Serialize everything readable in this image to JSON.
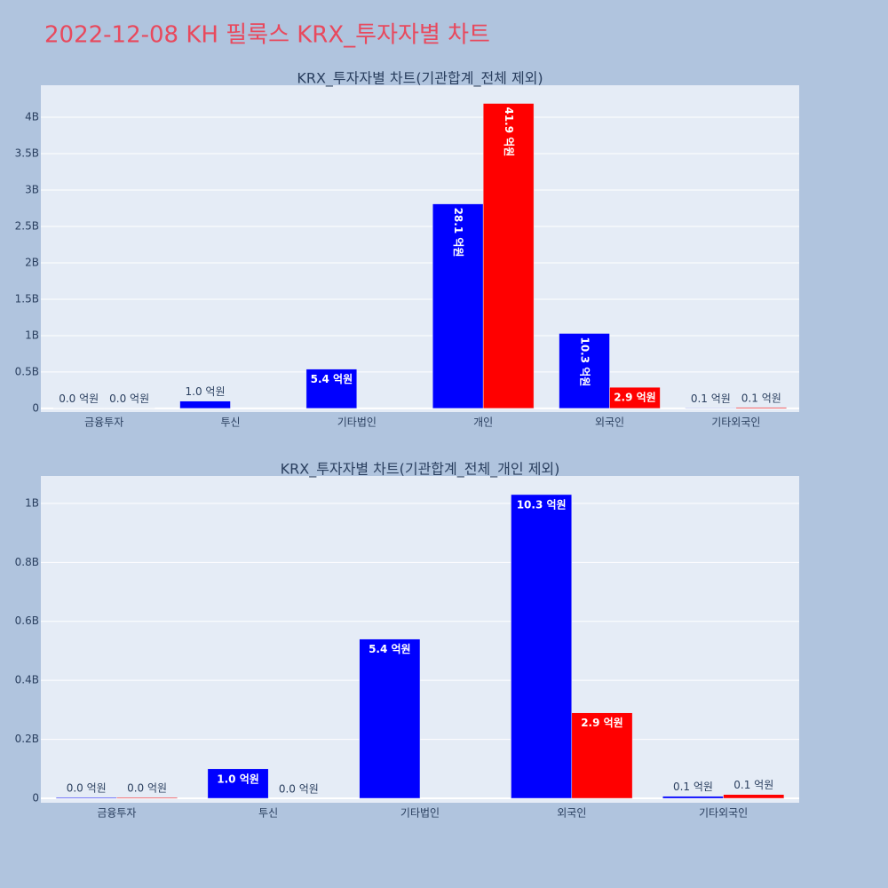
{
  "title": "2022-12-08 KH 필룩스 KRX_투자자별 차트",
  "chart_data": [
    {
      "type": "bar",
      "title": "KRX_투자자별 차트(기관합계_전체 제외)",
      "categories": [
        "금융투자",
        "투신",
        "기타법인",
        "개인",
        "외국인",
        "기타외국인"
      ],
      "series": [
        {
          "color": "#0000ff",
          "values": [
            3000000,
            100000000,
            540000000,
            2810000000,
            1030000000,
            7000000
          ],
          "value_labels": [
            "0.0 억원",
            "1.0 억원",
            "5.4 억원",
            "28.1 억원",
            "10.3 억원",
            "0.1 억원"
          ]
        },
        {
          "color": "#ff0000",
          "values": [
            3000000,
            null,
            null,
            4190000000,
            290000000,
            13000000
          ],
          "value_labels": [
            "0.0 억원",
            null,
            null,
            "41.9 억원",
            "2.9 억원",
            "0.1 억원"
          ]
        }
      ],
      "ylim": [
        -50000000,
        4440000000
      ],
      "yticks": [
        0,
        {
          "value": 500000000,
          "label": "0.5B"
        },
        {
          "value": 1000000000,
          "label": "1B"
        },
        {
          "value": 1500000000,
          "label": "1.5B"
        },
        {
          "value": 2000000000,
          "label": "2B"
        },
        {
          "value": 2500000000,
          "label": "2.5B"
        },
        {
          "value": 3000000000,
          "label": "3B"
        },
        {
          "value": 3500000000,
          "label": "3.5B"
        },
        {
          "value": 4000000000,
          "label": "4B"
        }
      ],
      "grid": true
    },
    {
      "type": "bar",
      "title": "KRX_투자자별 차트(기관합계_전체_개인 제외)",
      "categories": [
        "금융투자",
        "투신",
        "기타법인",
        "외국인",
        "기타외국인"
      ],
      "series": [
        {
          "color": "#0000ff",
          "values": [
            3000000,
            100000000,
            540000000,
            1030000000,
            7000000
          ],
          "value_labels": [
            "0.0 억원",
            "1.0 억원",
            "5.4 억원",
            "10.3 억원",
            "0.1 억원"
          ]
        },
        {
          "color": "#ff0000",
          "values": [
            3000000,
            0,
            null,
            290000000,
            13000000
          ],
          "value_labels": [
            "0.0 억원",
            "0.0 억원",
            null,
            "2.9 억원",
            "0.1 억원"
          ]
        }
      ],
      "ylim": [
        -15000000,
        1093000000
      ],
      "yticks": [
        0,
        {
          "value": 200000000,
          "label": "0.2B"
        },
        {
          "value": 400000000,
          "label": "0.4B"
        },
        {
          "value": 600000000,
          "label": "0.6B"
        },
        {
          "value": 800000000,
          "label": "0.8B"
        },
        {
          "value": 1000000000,
          "label": "1B"
        }
      ],
      "grid": true
    }
  ]
}
